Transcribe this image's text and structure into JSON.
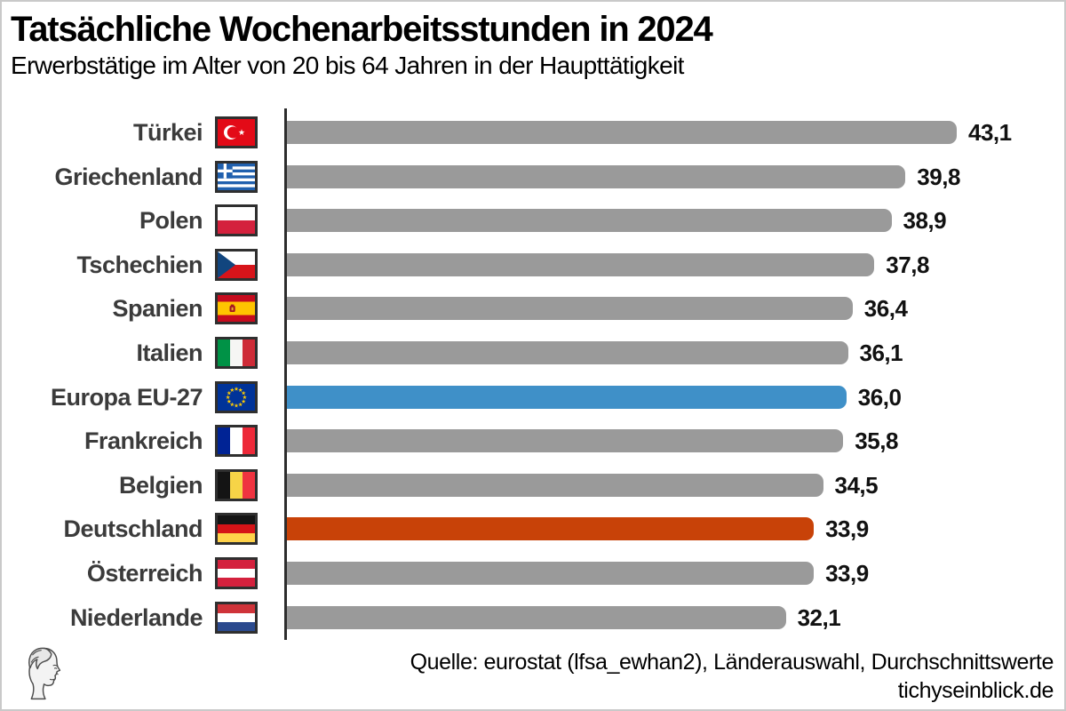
{
  "page": {
    "background": "#ffffff",
    "border_color": "#c9c9c9"
  },
  "header": {
    "title": "Tatsächliche Wochenarbeitsstunden in 2024",
    "subtitle": "Erwerbstätige im Alter von 20 bis 64 Jahren in der Haupttätigkeit"
  },
  "chart_data": {
    "type": "bar",
    "orientation": "horizontal",
    "title": "Tatsächliche Wochenarbeitsstunden in 2024",
    "subtitle": "Erwerbstätige im Alter von 20 bis 64 Jahren in der Haupttätigkeit",
    "unit": "Wochenarbeitsstunden",
    "categories": [
      "Türkei",
      "Griechenland",
      "Polen",
      "Tschechien",
      "Spanien",
      "Italien",
      "Europa EU-27",
      "Frankreich",
      "Belgien",
      "Deutschland",
      "Österreich",
      "Niederlande"
    ],
    "values": [
      43.1,
      39.8,
      38.9,
      37.8,
      36.4,
      36.1,
      36.0,
      35.8,
      34.5,
      33.9,
      33.9,
      32.1
    ],
    "value_labels": [
      "43,1",
      "39,8",
      "38,9",
      "37,8",
      "36,4",
      "36,1",
      "36,0",
      "35,8",
      "34,5",
      "33,9",
      "33,9",
      "32,1"
    ],
    "flag_icons": [
      "turkey",
      "greece",
      "poland",
      "czechia",
      "spain",
      "italy",
      "eu",
      "france",
      "belgium",
      "germany",
      "austria",
      "netherlands"
    ],
    "bar_color_roles": [
      "default",
      "default",
      "default",
      "default",
      "default",
      "default",
      "highlight_eu",
      "default",
      "default",
      "highlight_de",
      "default",
      "default"
    ],
    "colors": {
      "default": "#9a9a9a",
      "highlight_eu": "#3f90c8",
      "highlight_de": "#c84208",
      "axis": "#2d2d2d"
    },
    "x_axis": {
      "min": 0,
      "max": 43.1,
      "gridlines": false,
      "tick_labels_visible": false,
      "value_labels_at_bar_ends": true
    },
    "legend": null
  },
  "footer": {
    "source_line": "Quelle: eurostat (lfsa_ewhan2), Länderauswahl, Durchschnittswerte",
    "site_line": "tichyseinblick.de",
    "logo_icon": "classical-head-logo"
  }
}
